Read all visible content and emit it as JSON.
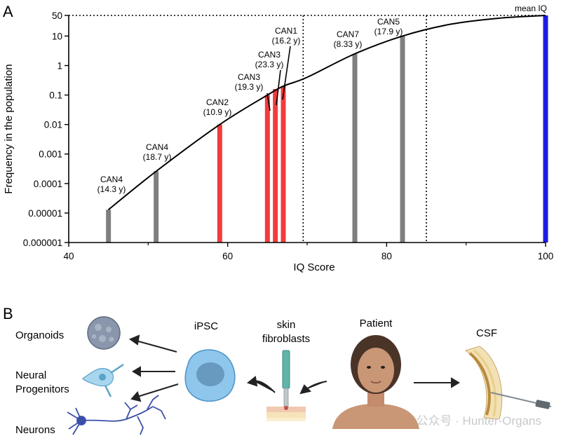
{
  "panel_a": {
    "letter": "A",
    "chart_data": {
      "type": "bar",
      "xlabel": "IQ Score",
      "ylabel": "Frequency in the population",
      "xlim": [
        40,
        100
      ],
      "x_ticks": [
        40,
        60,
        80,
        100
      ],
      "y_scale": "log",
      "ylim": [
        1e-06,
        50
      ],
      "y_ticks": [
        {
          "value": 50,
          "label": "50"
        },
        {
          "value": 10,
          "label": "10"
        },
        {
          "value": 1,
          "label": "1"
        },
        {
          "value": 0.1,
          "label": "0.1"
        },
        {
          "value": 0.01,
          "label": "0.01"
        },
        {
          "value": 0.001,
          "label": "0.001"
        },
        {
          "value": 0.0001,
          "label": "0.0001"
        },
        {
          "value": 1e-05,
          "label": "0.00001"
        },
        {
          "value": 1e-06,
          "label": "0.000001"
        }
      ],
      "bars": [
        {
          "iq": 45,
          "freq": 1.3e-05,
          "color": "#7f7f7f",
          "name": "CAN4",
          "age": "(14.3 y)"
        },
        {
          "iq": 51,
          "freq": 0.00026,
          "color": "#7f7f7f",
          "name": "CAN4",
          "age": "(18.7 y)"
        },
        {
          "iq": 59,
          "freq": 0.01,
          "color": "#f23c3c",
          "name": "CAN2",
          "age": "(10.9 y)"
        },
        {
          "iq": 65,
          "freq": 0.1,
          "color": "#f23c3c",
          "name": "CAN3",
          "age": "(19.3 y)"
        },
        {
          "iq": 66,
          "freq": 0.16,
          "color": "#f23c3c",
          "name": "CAN3",
          "age": "(23.3 y)"
        },
        {
          "iq": 67,
          "freq": 0.2,
          "color": "#f23c3c",
          "name": "CAN1",
          "age": "(16.2 y)"
        },
        {
          "iq": 76,
          "freq": 2.5,
          "color": "#7f7f7f",
          "name": "CAN7",
          "age": "(8.33 y)"
        },
        {
          "iq": 82,
          "freq": 10,
          "color": "#7f7f7f",
          "name": "CAN5",
          "age": "(17.9 y)"
        },
        {
          "iq": 100,
          "freq": 50,
          "color": "#1c1ce6",
          "name": "",
          "age": ""
        }
      ],
      "curve": {
        "iq_points": [
          45,
          51,
          59,
          65,
          67,
          70,
          76,
          82,
          88,
          94,
          100
        ],
        "freq_points": [
          1.3e-05,
          0.00026,
          0.01,
          0.1,
          0.2,
          0.4,
          2.5,
          10,
          25,
          40,
          50
        ]
      },
      "dotted_verticals": [
        69.5,
        85
      ],
      "dotted_horizontal": 50,
      "mean_label": "mean IQ"
    }
  },
  "panel_b": {
    "letter": "B",
    "labels": {
      "organoids": "Organoids",
      "neural_1": "Neural",
      "neural_2": "Progenitors",
      "neurons": "Neurons",
      "ipsc": "iPSC",
      "skin_1": "skin",
      "skin_2": "fibroblasts",
      "patient": "Patient",
      "csf": "CSF"
    },
    "watermark": "公众号 · Hunter-Organs"
  }
}
